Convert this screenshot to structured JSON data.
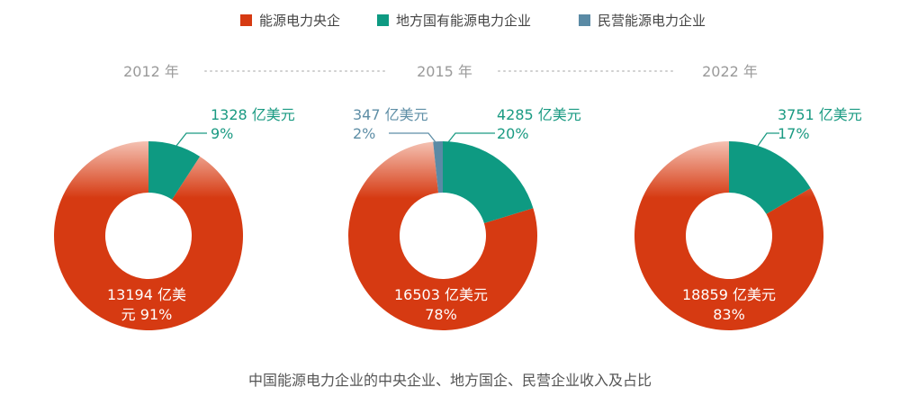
{
  "colors": {
    "central": "#d63a12",
    "local": "#0e9a82",
    "private": "#5a8aa5",
    "year": "#9a9a9a"
  },
  "legend": {
    "items": [
      {
        "name": "能源电力央企",
        "color": "#d63a12"
      },
      {
        "name": "地方国有能源电力企业",
        "color": "#0e9a82"
      },
      {
        "name": "民营能源电力企业",
        "color": "#5a8aa5"
      }
    ]
  },
  "chart_data": {
    "type": "pie",
    "variant": "donut",
    "title": "中国能源电力企业的中央企业、地方国企、民营企业收入及占比",
    "unit": "亿美元",
    "series_names": [
      "能源电力央企",
      "地方国有能源电力企业",
      "民营能源电力企业"
    ],
    "charts": [
      {
        "year": "2012 年",
        "slices": [
          {
            "name": "能源电力央企",
            "value": 13194,
            "percent": 91,
            "amount_label": "13194 亿美",
            "percent_label": "元 91%"
          },
          {
            "name": "地方国有能源电力企业",
            "value": 1328,
            "percent": 9,
            "amount_label": "1328 亿美元",
            "percent_label": "9%"
          }
        ]
      },
      {
        "year": "2015 年",
        "slices": [
          {
            "name": "能源电力央企",
            "value": 16503,
            "percent": 78,
            "amount_label": "16503 亿美元",
            "percent_label": "78%"
          },
          {
            "name": "地方国有能源电力企业",
            "value": 4285,
            "percent": 20,
            "amount_label": "4285 亿美元",
            "percent_label": "20%"
          },
          {
            "name": "民营能源电力企业",
            "value": 347,
            "percent": 2,
            "amount_label": "347 亿美元",
            "percent_label": "2%"
          }
        ]
      },
      {
        "year": "2022 年",
        "slices": [
          {
            "name": "能源电力央企",
            "value": 18859,
            "percent": 83,
            "amount_label": "18859 亿美元",
            "percent_label": "83%"
          },
          {
            "name": "地方国有能源电力企业",
            "value": 3751,
            "percent": 17,
            "amount_label": "3751 亿美元",
            "percent_label": "17%"
          }
        ]
      }
    ]
  }
}
